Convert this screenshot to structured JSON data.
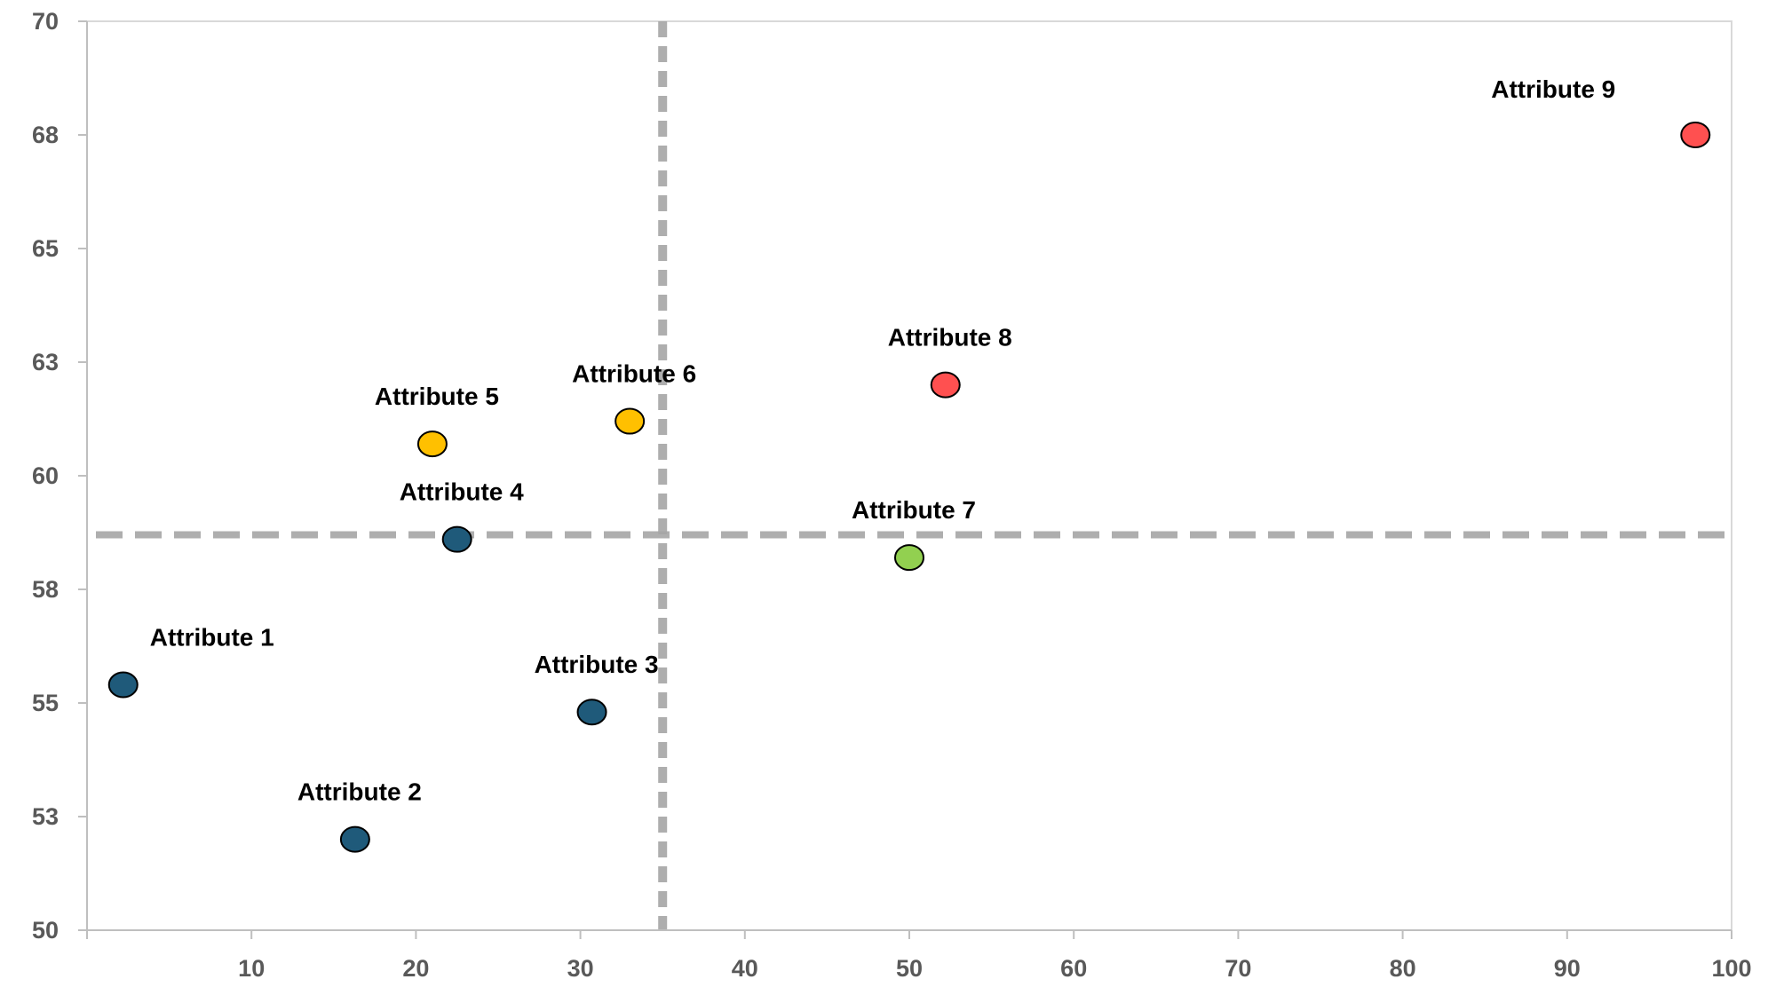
{
  "chart_data": {
    "type": "scatter",
    "title": "",
    "xlabel": "",
    "ylabel": "",
    "xlim": [
      0,
      100
    ],
    "ylim": [
      50,
      70
    ],
    "x_ticks": [
      10,
      20,
      30,
      40,
      50,
      60,
      70,
      80,
      90,
      100
    ],
    "x_tick_labels": [
      "10",
      "20",
      "30",
      "40",
      "50",
      "60",
      "70",
      "80",
      "90",
      "100"
    ],
    "y_ticks": [
      50,
      52.5,
      55,
      57.5,
      60,
      62.5,
      65,
      67.5,
      70
    ],
    "y_tick_labels": [
      "50",
      "53",
      "55",
      "58",
      "60",
      "63",
      "65",
      "68",
      "70"
    ],
    "grid": false,
    "reference_lines": {
      "x": 35,
      "y": 58.7,
      "color": "#A6A6A6",
      "style": "dashed"
    },
    "points": [
      {
        "label": "Attribute 1",
        "x": 2.2,
        "y": 55.4,
        "color": "#1F5A7A"
      },
      {
        "label": "Attribute 2",
        "x": 16.3,
        "y": 52.0,
        "color": "#1F5A7A"
      },
      {
        "label": "Attribute 3",
        "x": 30.7,
        "y": 54.8,
        "color": "#1F5A7A"
      },
      {
        "label": "Attribute 4",
        "x": 22.5,
        "y": 58.6,
        "color": "#1F5A7A"
      },
      {
        "label": "Attribute 5",
        "x": 21.0,
        "y": 60.7,
        "color": "#FFC000"
      },
      {
        "label": "Attribute 6",
        "x": 33.0,
        "y": 61.2,
        "color": "#FFC000"
      },
      {
        "label": "Attribute 7",
        "x": 50.0,
        "y": 58.2,
        "color": "#92D050"
      },
      {
        "label": "Attribute 8",
        "x": 52.2,
        "y": 62.0,
        "color": "#FF5050"
      },
      {
        "label": "Attribute 9",
        "x": 97.8,
        "y": 67.5,
        "color": "#FF5050"
      }
    ]
  }
}
